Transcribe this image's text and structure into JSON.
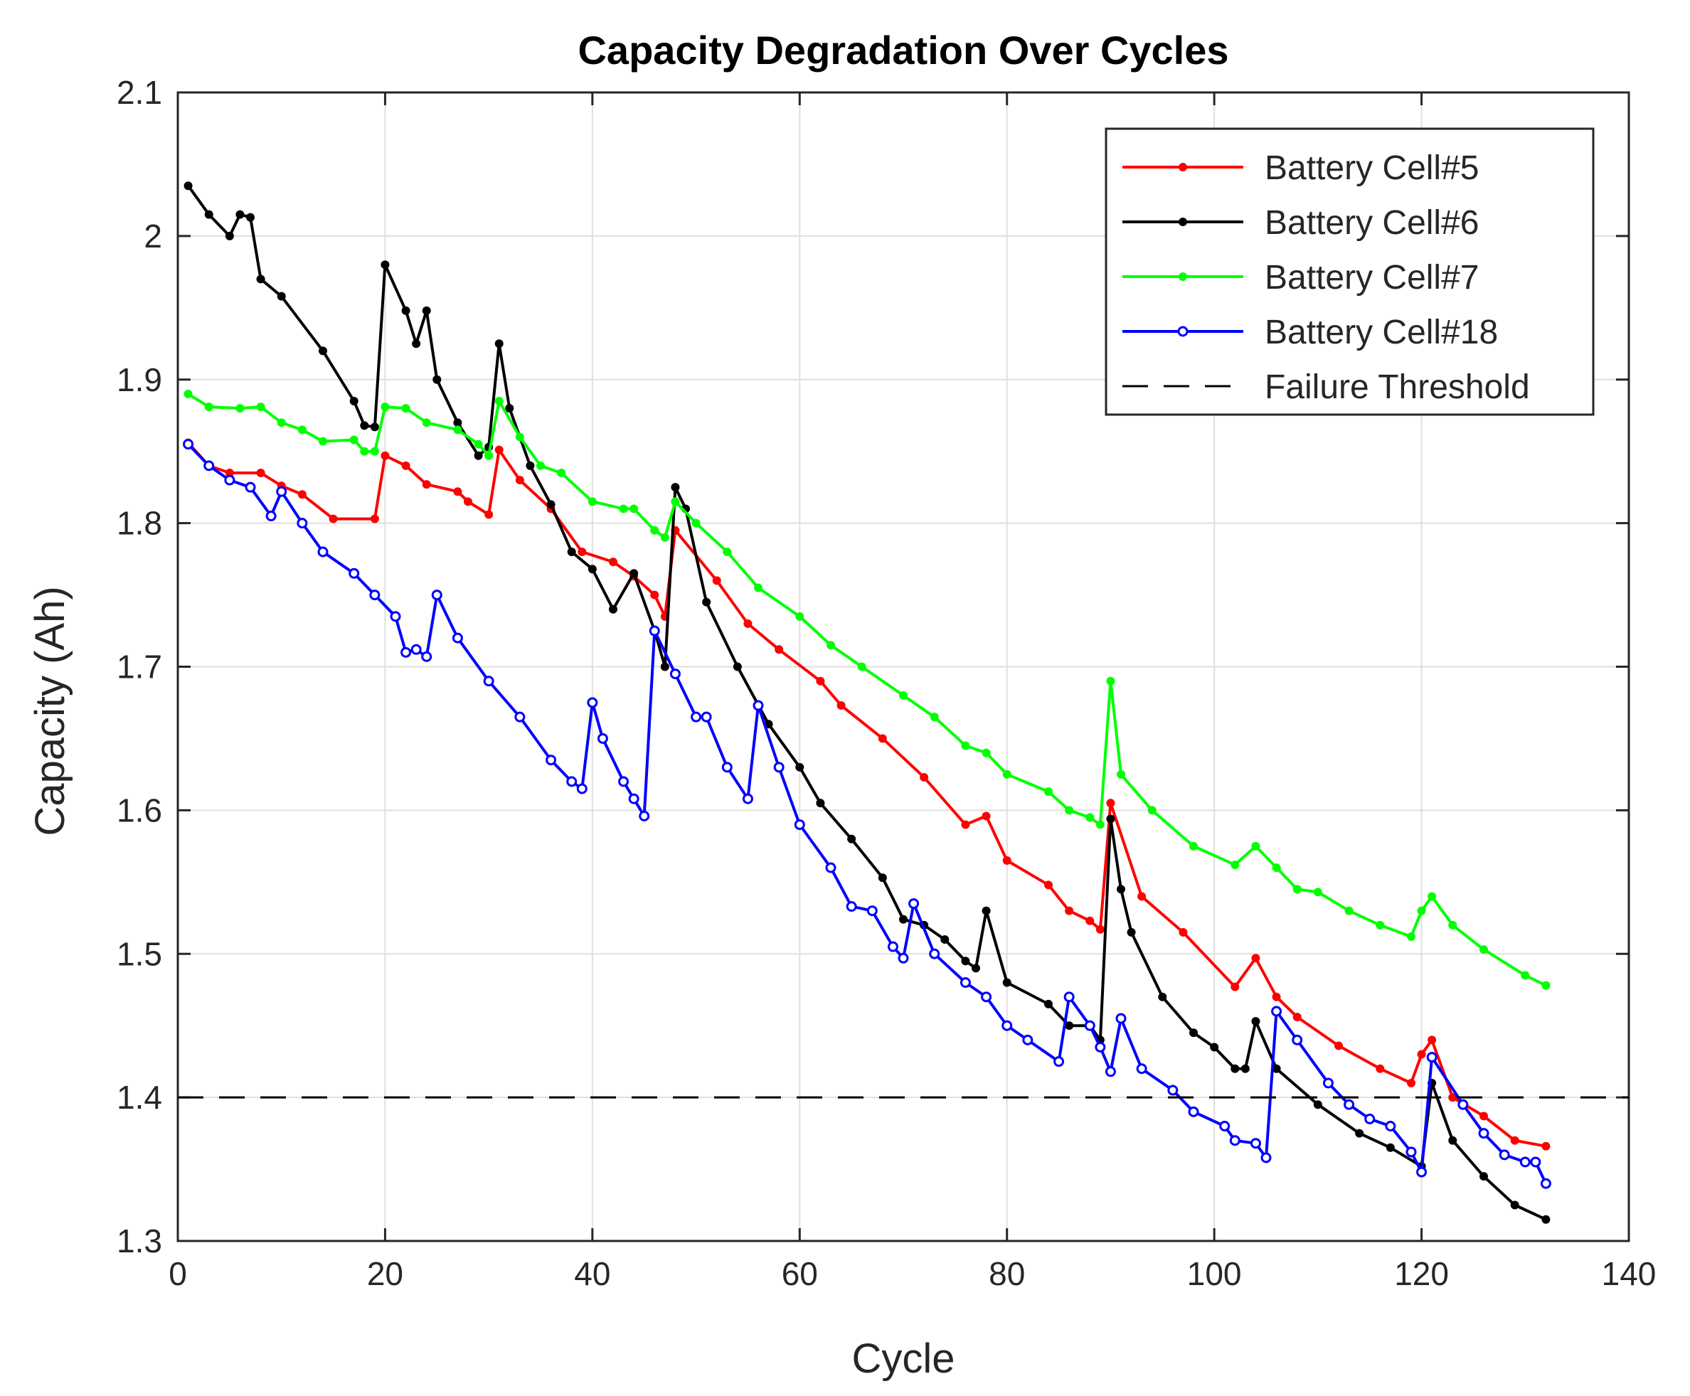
{
  "chart_data": {
    "type": "line",
    "title": "Capacity Degradation Over Cycles",
    "xlabel": "Cycle",
    "ylabel": "Capacity (Ah)",
    "xlim": [
      0,
      140
    ],
    "ylim": [
      1.3,
      2.1
    ],
    "xticks": [
      0,
      20,
      40,
      60,
      80,
      100,
      120,
      140
    ],
    "yticks": [
      1.3,
      1.4,
      1.5,
      1.6,
      1.7,
      1.8,
      1.9,
      2.0,
      2.1
    ],
    "xtick_labels": [
      "0",
      "20",
      "40",
      "60",
      "80",
      "100",
      "120",
      "140"
    ],
    "ytick_labels": [
      "1.3",
      "1.4",
      "1.5",
      "1.6",
      "1.7",
      "1.8",
      "1.9",
      "2",
      "2.1"
    ],
    "grid": true,
    "legend_position": "top-right",
    "series": [
      {
        "name": "Battery Cell#5",
        "color": "#ff0000",
        "marker": "dot",
        "points": [
          [
            1,
            1.856
          ],
          [
            3,
            1.84
          ],
          [
            5,
            1.835
          ],
          [
            8,
            1.835
          ],
          [
            10,
            1.826
          ],
          [
            12,
            1.82
          ],
          [
            15,
            1.803
          ],
          [
            19,
            1.803
          ],
          [
            20,
            1.847
          ],
          [
            22,
            1.84
          ],
          [
            24,
            1.827
          ],
          [
            27,
            1.822
          ],
          [
            28,
            1.815
          ],
          [
            30,
            1.806
          ],
          [
            31,
            1.851
          ],
          [
            33,
            1.83
          ],
          [
            36,
            1.81
          ],
          [
            39,
            1.78
          ],
          [
            42,
            1.773
          ],
          [
            44,
            1.763
          ],
          [
            46,
            1.75
          ],
          [
            47,
            1.735
          ],
          [
            48,
            1.795
          ],
          [
            52,
            1.76
          ],
          [
            55,
            1.73
          ],
          [
            58,
            1.712
          ],
          [
            62,
            1.69
          ],
          [
            64,
            1.673
          ],
          [
            68,
            1.65
          ],
          [
            72,
            1.623
          ],
          [
            76,
            1.59
          ],
          [
            78,
            1.596
          ],
          [
            80,
            1.565
          ],
          [
            84,
            1.548
          ],
          [
            86,
            1.53
          ],
          [
            88,
            1.523
          ],
          [
            89,
            1.517
          ],
          [
            90,
            1.605
          ],
          [
            93,
            1.54
          ],
          [
            97,
            1.515
          ],
          [
            102,
            1.477
          ],
          [
            104,
            1.497
          ],
          [
            106,
            1.47
          ],
          [
            108,
            1.456
          ],
          [
            112,
            1.436
          ],
          [
            116,
            1.42
          ],
          [
            119,
            1.41
          ],
          [
            120,
            1.43
          ],
          [
            121,
            1.44
          ],
          [
            123,
            1.4
          ],
          [
            126,
            1.387
          ],
          [
            129,
            1.37
          ],
          [
            132,
            1.366
          ]
        ]
      },
      {
        "name": "Battery Cell#6",
        "color": "#000000",
        "marker": "dot",
        "points": [
          [
            1,
            2.035
          ],
          [
            3,
            2.015
          ],
          [
            5,
            2.0
          ],
          [
            6,
            2.015
          ],
          [
            7,
            2.013
          ],
          [
            8,
            1.97
          ],
          [
            10,
            1.958
          ],
          [
            14,
            1.92
          ],
          [
            17,
            1.885
          ],
          [
            18,
            1.868
          ],
          [
            19,
            1.867
          ],
          [
            20,
            1.98
          ],
          [
            22,
            1.948
          ],
          [
            23,
            1.925
          ],
          [
            24,
            1.948
          ],
          [
            25,
            1.9
          ],
          [
            27,
            1.87
          ],
          [
            29,
            1.847
          ],
          [
            30,
            1.853
          ],
          [
            31,
            1.925
          ],
          [
            32,
            1.88
          ],
          [
            34,
            1.84
          ],
          [
            36,
            1.813
          ],
          [
            38,
            1.78
          ],
          [
            40,
            1.768
          ],
          [
            42,
            1.74
          ],
          [
            44,
            1.765
          ],
          [
            46,
            1.725
          ],
          [
            47,
            1.7
          ],
          [
            48,
            1.825
          ],
          [
            49,
            1.81
          ],
          [
            51,
            1.745
          ],
          [
            54,
            1.7
          ],
          [
            57,
            1.66
          ],
          [
            60,
            1.63
          ],
          [
            62,
            1.605
          ],
          [
            65,
            1.58
          ],
          [
            68,
            1.553
          ],
          [
            70,
            1.524
          ],
          [
            72,
            1.52
          ],
          [
            74,
            1.51
          ],
          [
            76,
            1.495
          ],
          [
            77,
            1.49
          ],
          [
            78,
            1.53
          ],
          [
            80,
            1.48
          ],
          [
            84,
            1.465
          ],
          [
            86,
            1.45
          ],
          [
            88,
            1.45
          ],
          [
            89,
            1.44
          ],
          [
            90,
            1.594
          ],
          [
            91,
            1.545
          ],
          [
            92,
            1.515
          ],
          [
            95,
            1.47
          ],
          [
            98,
            1.445
          ],
          [
            100,
            1.435
          ],
          [
            102,
            1.42
          ],
          [
            103,
            1.42
          ],
          [
            104,
            1.453
          ],
          [
            106,
            1.42
          ],
          [
            110,
            1.395
          ],
          [
            114,
            1.375
          ],
          [
            117,
            1.365
          ],
          [
            120,
            1.352
          ],
          [
            121,
            1.41
          ],
          [
            123,
            1.37
          ],
          [
            126,
            1.345
          ],
          [
            129,
            1.325
          ],
          [
            132,
            1.315
          ]
        ]
      },
      {
        "name": "Battery Cell#7",
        "color": "#00ff00",
        "marker": "dot",
        "points": [
          [
            1,
            1.89
          ],
          [
            3,
            1.881
          ],
          [
            6,
            1.88
          ],
          [
            8,
            1.881
          ],
          [
            10,
            1.87
          ],
          [
            12,
            1.865
          ],
          [
            14,
            1.857
          ],
          [
            17,
            1.858
          ],
          [
            18,
            1.85
          ],
          [
            19,
            1.85
          ],
          [
            20,
            1.881
          ],
          [
            22,
            1.88
          ],
          [
            24,
            1.87
          ],
          [
            27,
            1.865
          ],
          [
            29,
            1.855
          ],
          [
            30,
            1.847
          ],
          [
            31,
            1.885
          ],
          [
            33,
            1.86
          ],
          [
            35,
            1.84
          ],
          [
            37,
            1.835
          ],
          [
            40,
            1.815
          ],
          [
            43,
            1.81
          ],
          [
            44,
            1.81
          ],
          [
            46,
            1.795
          ],
          [
            47,
            1.79
          ],
          [
            48,
            1.815
          ],
          [
            50,
            1.8
          ],
          [
            53,
            1.78
          ],
          [
            56,
            1.755
          ],
          [
            60,
            1.735
          ],
          [
            63,
            1.715
          ],
          [
            66,
            1.7
          ],
          [
            70,
            1.68
          ],
          [
            73,
            1.665
          ],
          [
            76,
            1.645
          ],
          [
            78,
            1.64
          ],
          [
            80,
            1.625
          ],
          [
            84,
            1.613
          ],
          [
            86,
            1.6
          ],
          [
            88,
            1.595
          ],
          [
            89,
            1.59
          ],
          [
            90,
            1.69
          ],
          [
            91,
            1.625
          ],
          [
            94,
            1.6
          ],
          [
            98,
            1.575
          ],
          [
            102,
            1.562
          ],
          [
            104,
            1.575
          ],
          [
            106,
            1.56
          ],
          [
            108,
            1.545
          ],
          [
            110,
            1.543
          ],
          [
            113,
            1.53
          ],
          [
            116,
            1.52
          ],
          [
            119,
            1.512
          ],
          [
            120,
            1.53
          ],
          [
            121,
            1.54
          ],
          [
            123,
            1.52
          ],
          [
            126,
            1.503
          ],
          [
            130,
            1.485
          ],
          [
            132,
            1.478
          ]
        ]
      },
      {
        "name": "Battery Cell#18",
        "color": "#0000ff",
        "marker": "circle",
        "points": [
          [
            1,
            1.855
          ],
          [
            3,
            1.84
          ],
          [
            5,
            1.83
          ],
          [
            7,
            1.825
          ],
          [
            9,
            1.805
          ],
          [
            10,
            1.822
          ],
          [
            12,
            1.8
          ],
          [
            14,
            1.78
          ],
          [
            17,
            1.765
          ],
          [
            19,
            1.75
          ],
          [
            21,
            1.735
          ],
          [
            22,
            1.71
          ],
          [
            23,
            1.712
          ],
          [
            24,
            1.707
          ],
          [
            25,
            1.75
          ],
          [
            27,
            1.72
          ],
          [
            30,
            1.69
          ],
          [
            33,
            1.665
          ],
          [
            36,
            1.635
          ],
          [
            38,
            1.62
          ],
          [
            39,
            1.615
          ],
          [
            40,
            1.675
          ],
          [
            41,
            1.65
          ],
          [
            43,
            1.62
          ],
          [
            44,
            1.608
          ],
          [
            45,
            1.596
          ],
          [
            46,
            1.725
          ],
          [
            48,
            1.695
          ],
          [
            50,
            1.665
          ],
          [
            51,
            1.665
          ],
          [
            53,
            1.63
          ],
          [
            55,
            1.608
          ],
          [
            56,
            1.673
          ],
          [
            58,
            1.63
          ],
          [
            60,
            1.59
          ],
          [
            63,
            1.56
          ],
          [
            65,
            1.533
          ],
          [
            67,
            1.53
          ],
          [
            69,
            1.505
          ],
          [
            70,
            1.497
          ],
          [
            71,
            1.535
          ],
          [
            73,
            1.5
          ],
          [
            76,
            1.48
          ],
          [
            78,
            1.47
          ],
          [
            80,
            1.45
          ],
          [
            82,
            1.44
          ],
          [
            85,
            1.425
          ],
          [
            86,
            1.47
          ],
          [
            88,
            1.45
          ],
          [
            89,
            1.435
          ],
          [
            90,
            1.418
          ],
          [
            91,
            1.455
          ],
          [
            93,
            1.42
          ],
          [
            96,
            1.405
          ],
          [
            98,
            1.39
          ],
          [
            101,
            1.38
          ],
          [
            102,
            1.37
          ],
          [
            104,
            1.368
          ],
          [
            105,
            1.358
          ],
          [
            106,
            1.46
          ],
          [
            108,
            1.44
          ],
          [
            111,
            1.41
          ],
          [
            113,
            1.395
          ],
          [
            115,
            1.385
          ],
          [
            117,
            1.38
          ],
          [
            119,
            1.362
          ],
          [
            120,
            1.348
          ],
          [
            121,
            1.428
          ],
          [
            124,
            1.395
          ],
          [
            126,
            1.375
          ],
          [
            128,
            1.36
          ],
          [
            130,
            1.355
          ],
          [
            131,
            1.355
          ],
          [
            132,
            1.34
          ]
        ]
      },
      {
        "name": "Failure Threshold",
        "color": "#000000",
        "marker": "none",
        "dash": true,
        "points": [
          [
            0,
            1.4
          ],
          [
            140,
            1.4
          ]
        ]
      }
    ]
  }
}
